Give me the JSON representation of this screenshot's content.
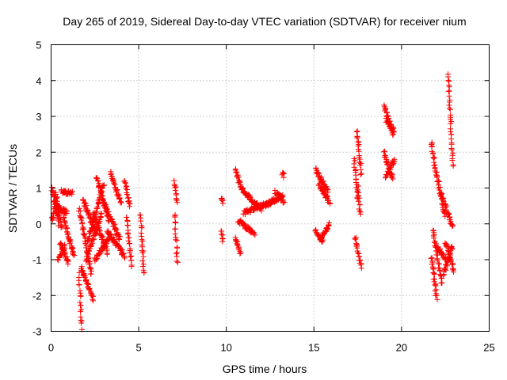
{
  "chart_data": {
    "type": "scatter",
    "title": "Day 265 of 2019, Sidereal Day-to-day VTEC variation (SDTVAR) for receiver nium",
    "xlabel": "GPS time / hours",
    "ylabel": "SDTVAR / TECUs",
    "xlim": [
      0,
      25
    ],
    "ylim": [
      -3,
      5
    ],
    "xticks": [
      0,
      5,
      10,
      15,
      20,
      25
    ],
    "yticks": [
      -3,
      -2,
      -1,
      0,
      1,
      2,
      3,
      4,
      5
    ],
    "xtick_labels": [
      "0",
      "5",
      "10",
      "15",
      "20",
      "25"
    ],
    "ytick_labels": [
      "-3",
      "-2",
      "-1",
      "0",
      "1",
      "2",
      "3",
      "4",
      "5"
    ],
    "grid": true,
    "marker": "+",
    "color": "#ff0000",
    "series": [
      {
        "name": "SDTVAR",
        "segments": [
          {
            "x0": 0.0,
            "x1": 0.45,
            "y0": 1.1,
            "y1": 0.0
          },
          {
            "x0": 0.05,
            "x1": 0.35,
            "y0": 0.1,
            "y1": 0.7
          },
          {
            "x0": 0.2,
            "x1": 0.6,
            "y0": 0.9,
            "y1": -0.1
          },
          {
            "x0": 0.4,
            "x1": 0.8,
            "y0": -1.0,
            "y1": -0.6
          },
          {
            "x0": 0.5,
            "x1": 1.0,
            "y0": -0.5,
            "y1": -1.1
          },
          {
            "x0": 0.6,
            "x1": 1.2,
            "y0": 0.9,
            "y1": 0.85
          },
          {
            "x0": 0.3,
            "x1": 0.9,
            "y0": 0.5,
            "y1": 0.3
          },
          {
            "x0": 0.7,
            "x1": 1.3,
            "y0": 0.2,
            "y1": -0.9
          },
          {
            "x0": 1.6,
            "x1": 1.75,
            "y0": -1.4,
            "y1": -2.9
          },
          {
            "x0": 1.6,
            "x1": 2.3,
            "y0": 0.4,
            "y1": -1.4
          },
          {
            "x0": 1.7,
            "x1": 2.4,
            "y0": -1.2,
            "y1": -2.1
          },
          {
            "x0": 1.8,
            "x1": 2.6,
            "y0": 0.7,
            "y1": -0.3
          },
          {
            "x0": 2.0,
            "x1": 2.9,
            "y0": -1.0,
            "y1": 0.3
          },
          {
            "x0": 2.1,
            "x1": 3.0,
            "y0": -0.5,
            "y1": 1.1
          },
          {
            "x0": 2.4,
            "x1": 3.2,
            "y0": 0.3,
            "y1": -0.8
          },
          {
            "x0": 2.5,
            "x1": 3.3,
            "y0": -1.0,
            "y1": -0.4
          },
          {
            "x0": 2.6,
            "x1": 3.3,
            "y0": 1.3,
            "y1": 0.1
          },
          {
            "x0": 3.0,
            "x1": 3.9,
            "y0": 0.6,
            "y1": -0.4
          },
          {
            "x0": 3.4,
            "x1": 4.0,
            "y0": 1.4,
            "y1": 0.6
          },
          {
            "x0": 3.2,
            "x1": 4.2,
            "y0": -0.2,
            "y1": -0.9
          },
          {
            "x0": 4.2,
            "x1": 4.5,
            "y0": 1.2,
            "y1": 0.5
          },
          {
            "x0": 4.3,
            "x1": 4.6,
            "y0": 0.2,
            "y1": -1.2
          },
          {
            "x0": 5.1,
            "x1": 5.3,
            "y0": 0.3,
            "y1": -1.4
          },
          {
            "x0": 7.05,
            "x1": 7.2,
            "y0": 1.2,
            "y1": 0.6
          },
          {
            "x0": 7.05,
            "x1": 7.2,
            "y0": 0.3,
            "y1": -1.1
          },
          {
            "x0": 9.7,
            "x1": 9.8,
            "y0": 0.7,
            "y1": 0.6
          },
          {
            "x0": 9.7,
            "x1": 9.8,
            "y0": -0.15,
            "y1": -0.45
          },
          {
            "x0": 10.5,
            "x1": 10.8,
            "y0": 1.5,
            "y1": 1.1
          },
          {
            "x0": 10.5,
            "x1": 10.8,
            "y0": -0.4,
            "y1": -0.8
          },
          {
            "x0": 10.7,
            "x1": 11.6,
            "y0": 0.1,
            "y1": -0.3
          },
          {
            "x0": 10.8,
            "x1": 12.0,
            "y0": 1.0,
            "y1": 0.4
          },
          {
            "x0": 11.0,
            "x1": 12.5,
            "y0": 0.3,
            "y1": 0.6
          },
          {
            "x0": 12.2,
            "x1": 13.2,
            "y0": 0.5,
            "y1": 0.8
          },
          {
            "x0": 12.8,
            "x1": 13.3,
            "y0": 0.9,
            "y1": 0.6
          },
          {
            "x0": 13.2,
            "x1": 13.3,
            "y0": 1.4,
            "y1": 1.35
          },
          {
            "x0": 15.1,
            "x1": 15.8,
            "y0": 1.5,
            "y1": 0.9
          },
          {
            "x0": 15.3,
            "x1": 15.9,
            "y0": 1.1,
            "y1": 0.6
          },
          {
            "x0": 15.1,
            "x1": 15.5,
            "y0": -0.2,
            "y1": -0.5
          },
          {
            "x0": 15.4,
            "x1": 15.9,
            "y0": -0.4,
            "y1": 0.0
          },
          {
            "x0": 17.3,
            "x1": 17.5,
            "y0": 1.8,
            "y1": 0.7
          },
          {
            "x0": 17.45,
            "x1": 17.7,
            "y0": 2.6,
            "y1": 1.4
          },
          {
            "x0": 17.5,
            "x1": 17.65,
            "y0": 1.0,
            "y1": 0.3
          },
          {
            "x0": 17.35,
            "x1": 17.7,
            "y0": -0.4,
            "y1": -1.2
          },
          {
            "x0": 19.0,
            "x1": 19.5,
            "y0": 3.3,
            "y1": 2.5
          },
          {
            "x0": 19.1,
            "x1": 19.6,
            "y0": 2.9,
            "y1": 2.6
          },
          {
            "x0": 19.0,
            "x1": 19.5,
            "y0": 2.0,
            "y1": 1.2
          },
          {
            "x0": 19.1,
            "x1": 19.6,
            "y0": 1.3,
            "y1": 1.8
          },
          {
            "x0": 21.7,
            "x1": 21.9,
            "y0": 2.3,
            "y1": 1.6
          },
          {
            "x0": 21.7,
            "x1": 22.0,
            "y0": -0.9,
            "y1": -2.1
          },
          {
            "x0": 21.8,
            "x1": 22.3,
            "y0": -0.2,
            "y1": -1.7
          },
          {
            "x0": 21.9,
            "x1": 22.5,
            "y0": 1.6,
            "y1": 0.2
          },
          {
            "x0": 22.0,
            "x1": 22.5,
            "y0": -0.6,
            "y1": -1.0
          },
          {
            "x0": 22.3,
            "x1": 22.9,
            "y0": 0.8,
            "y1": -0.1
          },
          {
            "x0": 22.4,
            "x1": 22.9,
            "y0": -1.4,
            "y1": -0.6
          },
          {
            "x0": 22.5,
            "x1": 23.0,
            "y0": -0.5,
            "y1": -1.3
          },
          {
            "x0": 22.65,
            "x1": 22.95,
            "y0": 4.2,
            "y1": 1.6
          }
        ]
      }
    ]
  }
}
